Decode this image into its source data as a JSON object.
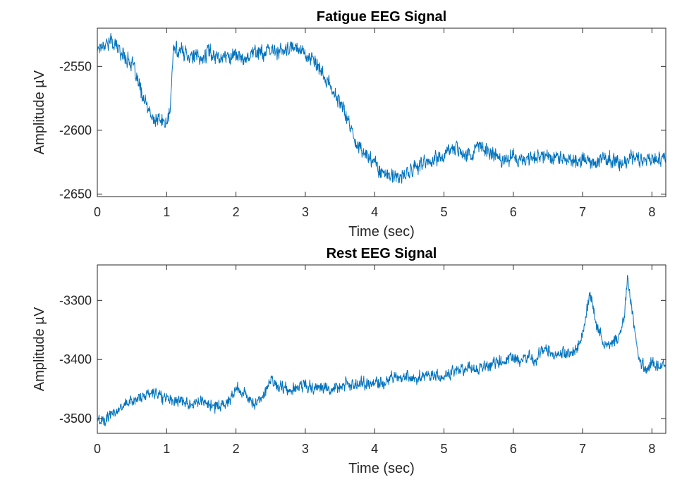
{
  "colors": {
    "series": "#0072BD",
    "axis": "#262626",
    "background": "#FFFFFF"
  },
  "chart_data": [
    {
      "type": "line",
      "title": "Fatigue EEG Signal",
      "xlabel": "Time (sec)",
      "ylabel": "Amplitude µV",
      "xlim": [
        0,
        8.2
      ],
      "ylim": [
        -2652,
        -2520
      ],
      "xticks": [
        0,
        1,
        2,
        3,
        4,
        5,
        6,
        7,
        8
      ],
      "yticks": [
        -2550,
        -2600,
        -2650
      ],
      "grid": false,
      "series": [
        {
          "x": [
            0,
            0.1,
            0.2,
            0.3,
            0.4,
            0.5,
            0.6,
            0.7,
            0.8,
            0.9,
            1.0,
            1.05,
            1.1,
            1.2,
            1.3,
            1.4,
            1.5,
            1.6,
            1.7,
            1.8,
            1.9,
            2.0,
            2.1,
            2.2,
            2.3,
            2.4,
            2.5,
            2.6,
            2.7,
            2.8,
            2.9,
            3.0,
            3.1,
            3.2,
            3.3,
            3.4,
            3.5,
            3.6,
            3.7,
            3.8,
            3.9,
            4.0,
            4.1,
            4.2,
            4.3,
            4.4,
            4.5,
            4.6,
            4.7,
            4.8,
            4.9,
            5.0,
            5.1,
            5.2,
            5.3,
            5.4,
            5.5,
            5.6,
            5.7,
            5.8,
            5.9,
            6.0,
            6.1,
            6.2,
            6.3,
            6.4,
            6.5,
            6.6,
            6.7,
            6.8,
            6.9,
            7.0,
            7.1,
            7.2,
            7.3,
            7.4,
            7.5,
            7.6,
            7.7,
            7.8,
            7.9,
            8.0,
            8.1,
            8.2
          ],
          "values": [
            -2535,
            -2532,
            -2530,
            -2536,
            -2542,
            -2548,
            -2565,
            -2580,
            -2592,
            -2592,
            -2595,
            -2585,
            -2535,
            -2538,
            -2540,
            -2542,
            -2545,
            -2538,
            -2541,
            -2543,
            -2542,
            -2540,
            -2545,
            -2540,
            -2538,
            -2540,
            -2538,
            -2537,
            -2539,
            -2536,
            -2534,
            -2540,
            -2545,
            -2552,
            -2560,
            -2570,
            -2578,
            -2590,
            -2605,
            -2615,
            -2620,
            -2625,
            -2632,
            -2635,
            -2638,
            -2636,
            -2633,
            -2628,
            -2627,
            -2625,
            -2622,
            -2620,
            -2615,
            -2613,
            -2618,
            -2620,
            -2612,
            -2615,
            -2618,
            -2622,
            -2622,
            -2620,
            -2625,
            -2622,
            -2620,
            -2620,
            -2619,
            -2621,
            -2622,
            -2623,
            -2625,
            -2622,
            -2625,
            -2624,
            -2624,
            -2623,
            -2625,
            -2628,
            -2620,
            -2622,
            -2622,
            -2623,
            -2620,
            -2622
          ]
        }
      ]
    },
    {
      "type": "line",
      "title": "Rest EEG Signal",
      "xlabel": "Time (sec)",
      "ylabel": "Amplitude µV",
      "xlim": [
        0,
        8.2
      ],
      "ylim": [
        -3525,
        -3240
      ],
      "xticks": [
        0,
        1,
        2,
        3,
        4,
        5,
        6,
        7,
        8
      ],
      "yticks": [
        -3300,
        -3400,
        -3500
      ],
      "grid": false,
      "series": [
        {
          "x": [
            0,
            0.1,
            0.2,
            0.3,
            0.4,
            0.5,
            0.6,
            0.7,
            0.8,
            0.9,
            1.0,
            1.1,
            1.2,
            1.3,
            1.4,
            1.5,
            1.6,
            1.7,
            1.8,
            1.9,
            2.0,
            2.1,
            2.2,
            2.3,
            2.4,
            2.5,
            2.6,
            2.7,
            2.8,
            2.9,
            3.0,
            3.1,
            3.2,
            3.3,
            3.4,
            3.5,
            3.6,
            3.7,
            3.8,
            3.9,
            4.0,
            4.1,
            4.2,
            4.3,
            4.4,
            4.5,
            4.6,
            4.7,
            4.8,
            4.9,
            5.0,
            5.1,
            5.2,
            5.3,
            5.4,
            5.5,
            5.6,
            5.7,
            5.8,
            5.9,
            6.0,
            6.1,
            6.2,
            6.3,
            6.4,
            6.5,
            6.6,
            6.7,
            6.8,
            6.9,
            7.0,
            7.1,
            7.2,
            7.3,
            7.4,
            7.5,
            7.6,
            7.65,
            7.7,
            7.8,
            7.9,
            8.0,
            8.1,
            8.2
          ],
          "values": [
            -3505,
            -3500,
            -3495,
            -3485,
            -3475,
            -3470,
            -3465,
            -3460,
            -3455,
            -3460,
            -3465,
            -3468,
            -3470,
            -3472,
            -3475,
            -3472,
            -3475,
            -3480,
            -3478,
            -3470,
            -3448,
            -3455,
            -3470,
            -3475,
            -3460,
            -3435,
            -3445,
            -3448,
            -3450,
            -3445,
            -3442,
            -3450,
            -3448,
            -3445,
            -3450,
            -3445,
            -3440,
            -3445,
            -3440,
            -3440,
            -3438,
            -3440,
            -3432,
            -3430,
            -3430,
            -3428,
            -3432,
            -3430,
            -3428,
            -3426,
            -3430,
            -3422,
            -3418,
            -3415,
            -3412,
            -3415,
            -3412,
            -3408,
            -3405,
            -3400,
            -3395,
            -3400,
            -3395,
            -3400,
            -3390,
            -3385,
            -3392,
            -3388,
            -3392,
            -3385,
            -3360,
            -3285,
            -3340,
            -3370,
            -3375,
            -3365,
            -3330,
            -3255,
            -3310,
            -3390,
            -3420,
            -3405,
            -3415,
            -3410
          ]
        }
      ]
    }
  ]
}
